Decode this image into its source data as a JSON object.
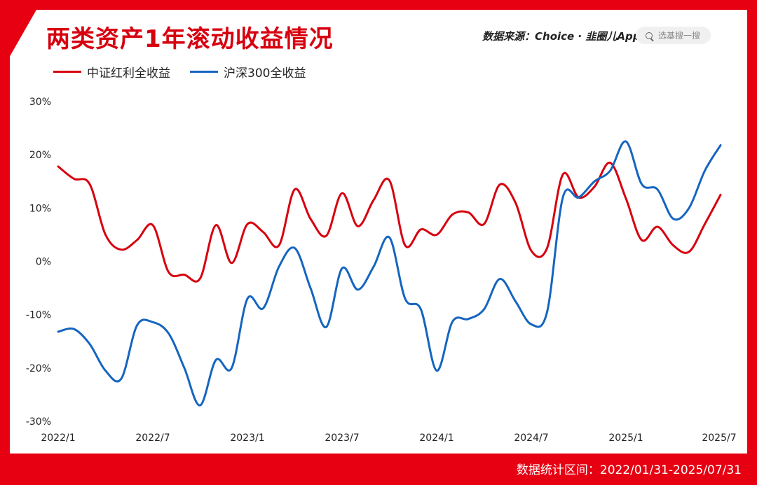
{
  "title": "两类资产1年滚动收益情况",
  "source": "数据来源：Choice · 韭圈儿App",
  "search_placeholder": "选基搜一搜",
  "footer": "数据统计区间：2022/01/31-2025/07/31",
  "colors": {
    "red": "#d7000f",
    "blue": "#1565c0",
    "frame": "#e60012"
  },
  "chart_data": {
    "type": "line",
    "x": [
      "2022/1",
      "2022/2",
      "2022/3",
      "2022/4",
      "2022/5",
      "2022/6",
      "2022/7",
      "2022/8",
      "2022/9",
      "2022/10",
      "2022/11",
      "2022/12",
      "2023/1",
      "2023/2",
      "2023/3",
      "2023/4",
      "2023/5",
      "2023/6",
      "2023/7",
      "2023/8",
      "2023/9",
      "2023/10",
      "2023/11",
      "2023/12",
      "2024/1",
      "2024/2",
      "2024/3",
      "2024/4",
      "2024/5",
      "2024/6",
      "2024/7",
      "2024/8",
      "2024/9",
      "2024/10",
      "2024/11",
      "2024/12",
      "2025/1",
      "2025/2",
      "2025/3",
      "2025/4",
      "2025/5",
      "2025/6",
      "2025/7"
    ],
    "x_ticks": [
      "2022/1",
      "2022/7",
      "2023/1",
      "2023/7",
      "2024/1",
      "2024/7",
      "2025/1",
      "2025/7"
    ],
    "y_ticks": [
      "30%",
      "20%",
      "10%",
      "0%",
      "-10%",
      "-20%",
      "-30%"
    ],
    "ylim": [
      -30,
      30
    ],
    "legend_position": "top-left",
    "grid": false,
    "series": [
      {
        "name": "中证红利全收益",
        "color": "#d7000f",
        "values": [
          17.8,
          15.5,
          14.5,
          5,
          2.2,
          4,
          6.8,
          -2,
          -2.5,
          -3.2,
          6.8,
          -0.3,
          7,
          5.5,
          3,
          13.5,
          8,
          4.8,
          12.8,
          6.6,
          11.5,
          15.2,
          3,
          6,
          5,
          8.8,
          9.2,
          7,
          14.4,
          11,
          2,
          2.5,
          16.3,
          12,
          14,
          18.5,
          11.8,
          4,
          6.5,
          3,
          1.8,
          7,
          12.5
        ]
      },
      {
        "name": "沪深300全收益",
        "color": "#1565c0",
        "values": [
          -13.2,
          -12.7,
          -15.5,
          -20.5,
          -22,
          -12,
          -11.4,
          -13.5,
          -20,
          -27,
          -18.5,
          -20,
          -7,
          -8.8,
          -1,
          2.5,
          -5,
          -12.3,
          -1.3,
          -5.3,
          -1,
          4.5,
          -7,
          -9,
          -20.5,
          -11.3,
          -10.8,
          -9,
          -3.3,
          -7.5,
          -11.8,
          -9.5,
          12,
          12,
          15,
          17,
          22.5,
          14.5,
          13.5,
          8,
          10,
          17,
          21.8
        ]
      }
    ]
  }
}
